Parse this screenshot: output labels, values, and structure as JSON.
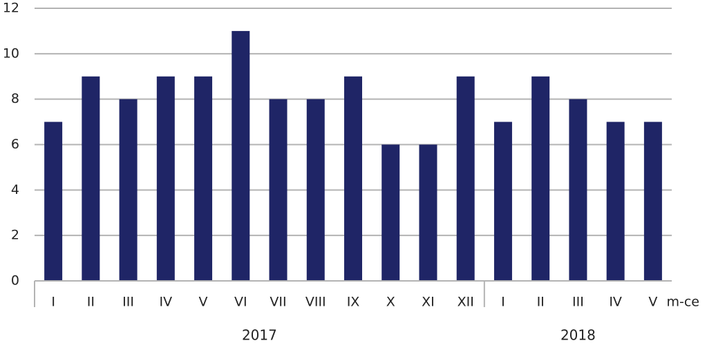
{
  "chart_data": {
    "type": "bar",
    "categories": [
      "I",
      "II",
      "III",
      "IV",
      "V",
      "VI",
      "VII",
      "VIII",
      "IX",
      "X",
      "XI",
      "XII",
      "I",
      "II",
      "III",
      "IV",
      "V"
    ],
    "groups": [
      {
        "label": "2017",
        "start": 0,
        "end": 11
      },
      {
        "label": "2018",
        "start": 12,
        "end": 16
      }
    ],
    "series": [
      {
        "values": [
          7,
          9,
          8,
          9,
          9,
          11,
          8,
          8,
          9,
          6,
          6,
          9,
          7,
          9,
          8,
          7,
          7
        ]
      }
    ],
    "yticks": [
      0,
      2,
      4,
      6,
      8,
      10,
      12
    ],
    "ylim": [
      0,
      12
    ],
    "xunit": "m-ce",
    "grid": true,
    "colors": {
      "bar": "#1f2566",
      "grid": "#b3b3b3",
      "axis": "#b3b3b3"
    }
  }
}
